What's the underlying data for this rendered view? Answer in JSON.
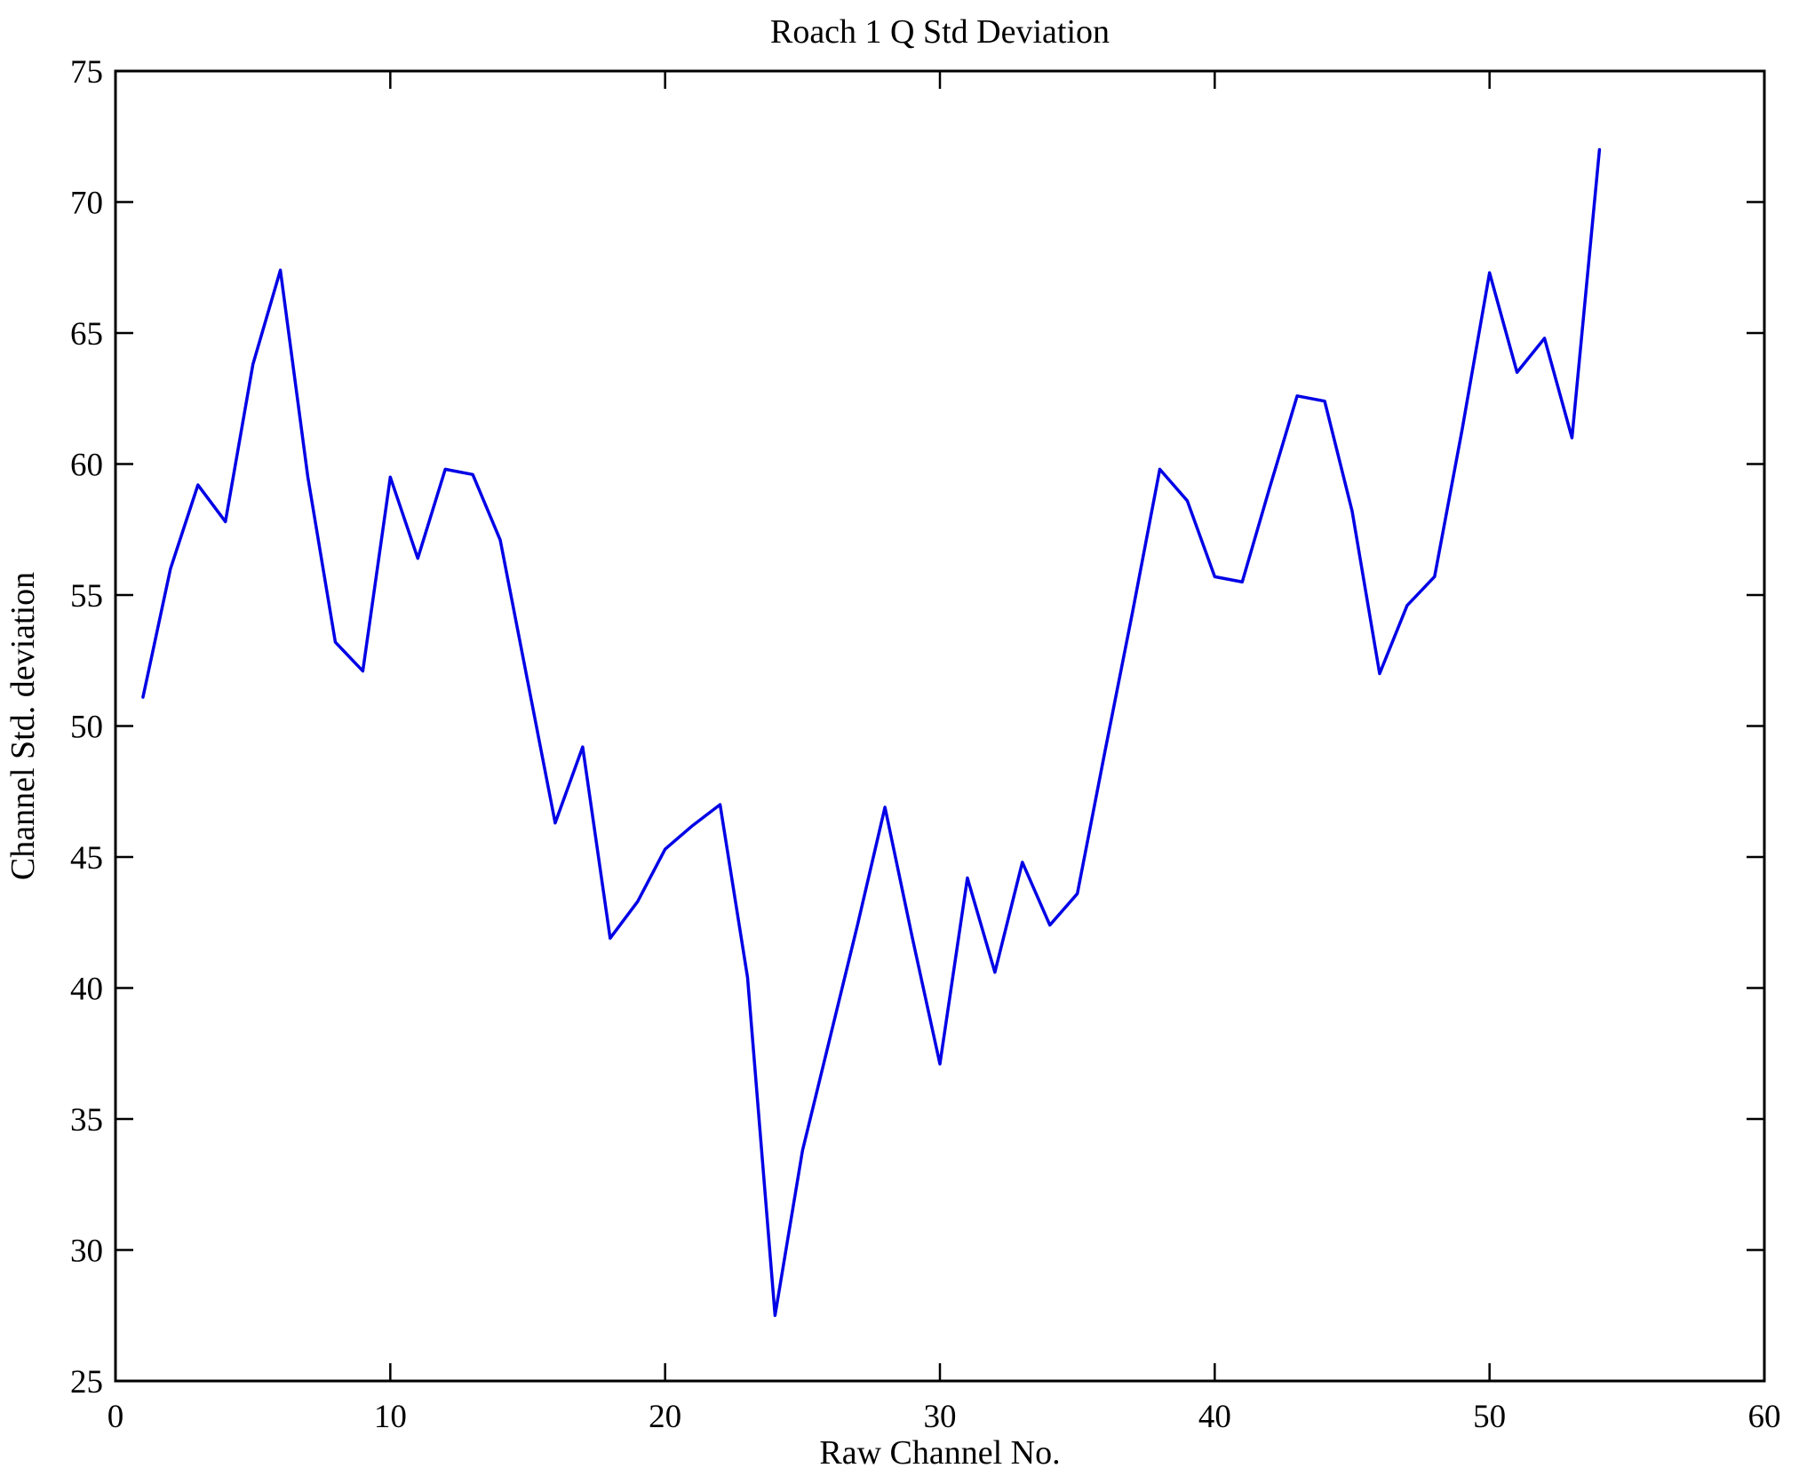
{
  "chart_data": {
    "type": "line",
    "title": "Roach 1 Q Std Deviation",
    "xlabel": "Raw Channel No.",
    "ylabel": "Channel Std. deviation",
    "x": [
      1,
      2,
      3,
      4,
      5,
      6,
      7,
      8,
      9,
      10,
      11,
      12,
      13,
      14,
      15,
      16,
      17,
      18,
      19,
      20,
      21,
      22,
      23,
      24,
      25,
      26,
      27,
      28,
      29,
      30,
      31,
      32,
      33,
      34,
      35,
      36,
      37,
      38,
      39,
      40,
      41,
      42,
      43,
      44,
      45,
      46,
      47,
      48,
      49,
      50,
      51,
      52,
      53,
      54
    ],
    "values": [
      51.1,
      56.0,
      59.2,
      57.8,
      63.8,
      67.4,
      59.5,
      53.2,
      52.1,
      59.5,
      56.4,
      59.8,
      59.6,
      57.1,
      51.7,
      46.3,
      49.2,
      41.9,
      43.3,
      45.3,
      46.2,
      47.0,
      40.4,
      27.5,
      33.8,
      38.1,
      42.4,
      46.9,
      41.9,
      37.1,
      44.2,
      40.6,
      44.8,
      42.4,
      43.6,
      49.0,
      54.3,
      59.8,
      58.6,
      55.7,
      55.5,
      59.1,
      62.6,
      62.4,
      58.2,
      52.0,
      54.6,
      55.7,
      61.3,
      67.3,
      63.5,
      64.8,
      61.0,
      72.0
    ],
    "xlim": [
      0,
      60
    ],
    "ylim": [
      25,
      75
    ],
    "xticks": [
      0,
      10,
      20,
      30,
      40,
      50,
      60
    ],
    "yticks": [
      25,
      30,
      35,
      40,
      45,
      50,
      55,
      60,
      65,
      70,
      75
    ],
    "grid": false,
    "legend": null,
    "line_color": "#0000e6",
    "frame_color": "#000000",
    "background_color": "#ffffff"
  }
}
